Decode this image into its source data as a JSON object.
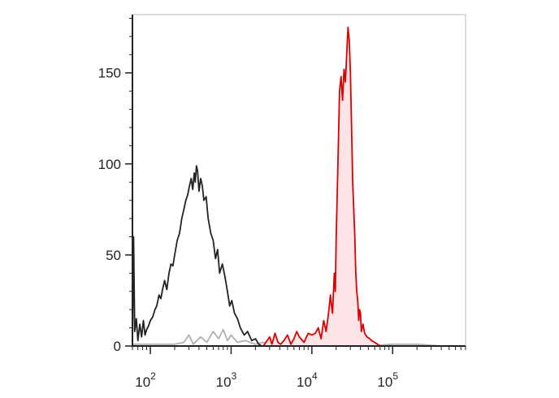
{
  "chart_data": {
    "type": "area",
    "title": "",
    "xlabel": "",
    "ylabel": "",
    "x_scale": "log",
    "xlim": [
      60,
      800000
    ],
    "ylim": [
      0,
      182
    ],
    "grid": false,
    "legend": "none",
    "x_ticks": [
      {
        "value": 100,
        "base": "10",
        "exp": "2"
      },
      {
        "value": 1000,
        "base": "10",
        "exp": "3"
      },
      {
        "value": 10000,
        "base": "10",
        "exp": "4"
      },
      {
        "value": 100000,
        "base": "10",
        "exp": "5"
      }
    ],
    "y_ticks": [
      {
        "value": 0,
        "label": "0"
      },
      {
        "value": 50,
        "label": "50"
      },
      {
        "value": 100,
        "label": "100"
      },
      {
        "value": 150,
        "label": "150"
      }
    ],
    "series": [
      {
        "color": "#b0b0b0",
        "fill": false,
        "points": [
          [
            60,
            1
          ],
          [
            80,
            1
          ],
          [
            120,
            1
          ],
          [
            200,
            1
          ],
          [
            260,
            2
          ],
          [
            300,
            6
          ],
          [
            340,
            1
          ],
          [
            420,
            5
          ],
          [
            500,
            2
          ],
          [
            600,
            8
          ],
          [
            700,
            4
          ],
          [
            800,
            9
          ],
          [
            900,
            3
          ],
          [
            1000,
            6
          ],
          [
            1200,
            2
          ],
          [
            1500,
            3
          ],
          [
            2000,
            1
          ],
          [
            2500,
            2
          ],
          [
            3000,
            1
          ],
          [
            5000,
            0
          ],
          [
            8000,
            0
          ],
          [
            20000,
            0
          ],
          [
            50000,
            0
          ],
          [
            100000,
            1
          ],
          [
            200000,
            1
          ],
          [
            400000,
            0
          ],
          [
            800000,
            0
          ]
        ]
      },
      {
        "color": "#222222",
        "fill": false,
        "points": [
          [
            60,
            0
          ],
          [
            62,
            60
          ],
          [
            64,
            8
          ],
          [
            67,
            15
          ],
          [
            70,
            3
          ],
          [
            74,
            12
          ],
          [
            78,
            5
          ],
          [
            82,
            14
          ],
          [
            86,
            6
          ],
          [
            90,
            9
          ],
          [
            95,
            11
          ],
          [
            100,
            14
          ],
          [
            107,
            16
          ],
          [
            114,
            20
          ],
          [
            120,
            22
          ],
          [
            128,
            28
          ],
          [
            135,
            26
          ],
          [
            143,
            32
          ],
          [
            150,
            36
          ],
          [
            160,
            31
          ],
          [
            170,
            40
          ],
          [
            180,
            45
          ],
          [
            190,
            44
          ],
          [
            200,
            50
          ],
          [
            215,
            58
          ],
          [
            230,
            62
          ],
          [
            245,
            70
          ],
          [
            260,
            75
          ],
          [
            275,
            80
          ],
          [
            290,
            83
          ],
          [
            305,
            88
          ],
          [
            320,
            92
          ],
          [
            335,
            86
          ],
          [
            350,
            95
          ],
          [
            360,
            90
          ],
          [
            372,
            99
          ],
          [
            385,
            96
          ],
          [
            400,
            85
          ],
          [
            420,
            92
          ],
          [
            440,
            88
          ],
          [
            460,
            80
          ],
          [
            490,
            82
          ],
          [
            520,
            70
          ],
          [
            560,
            62
          ],
          [
            600,
            58
          ],
          [
            640,
            48
          ],
          [
            680,
            53
          ],
          [
            720,
            40
          ],
          [
            780,
            45
          ],
          [
            840,
            38
          ],
          [
            900,
            30
          ],
          [
            960,
            22
          ],
          [
            1020,
            25
          ],
          [
            1100,
            18
          ],
          [
            1200,
            15
          ],
          [
            1300,
            10
          ],
          [
            1450,
            6
          ],
          [
            1600,
            8
          ],
          [
            1800,
            3
          ],
          [
            2000,
            4
          ],
          [
            2200,
            1
          ],
          [
            2400,
            0
          ]
        ]
      },
      {
        "color": "#dd0000",
        "fill": true,
        "fill_color": "#fde4e6",
        "points": [
          [
            2500,
            0
          ],
          [
            2700,
            2
          ],
          [
            3000,
            5
          ],
          [
            3200,
            1
          ],
          [
            3500,
            7
          ],
          [
            3800,
            2
          ],
          [
            4100,
            1
          ],
          [
            4500,
            3
          ],
          [
            5000,
            6
          ],
          [
            5500,
            1
          ],
          [
            6000,
            4
          ],
          [
            6500,
            8
          ],
          [
            7000,
            5
          ],
          [
            8000,
            2
          ],
          [
            9000,
            7
          ],
          [
            10000,
            6
          ],
          [
            11000,
            7
          ],
          [
            12000,
            10
          ],
          [
            13000,
            4
          ],
          [
            14000,
            14
          ],
          [
            15000,
            8
          ],
          [
            16000,
            17
          ],
          [
            17000,
            28
          ],
          [
            17500,
            22
          ],
          [
            18000,
            18
          ],
          [
            19000,
            40
          ],
          [
            19500,
            30
          ],
          [
            20000,
            60
          ],
          [
            21000,
            100
          ],
          [
            22000,
            140
          ],
          [
            23000,
            148
          ],
          [
            24000,
            135
          ],
          [
            25000,
            152
          ],
          [
            26000,
            145
          ],
          [
            27000,
            160
          ],
          [
            28000,
            175
          ],
          [
            29000,
            168
          ],
          [
            30000,
            150
          ],
          [
            31000,
            120
          ],
          [
            32000,
            90
          ],
          [
            33000,
            75
          ],
          [
            34000,
            60
          ],
          [
            35000,
            40
          ],
          [
            36000,
            30
          ],
          [
            37000,
            25
          ],
          [
            38000,
            14
          ],
          [
            39000,
            20
          ],
          [
            40000,
            18
          ],
          [
            41000,
            8
          ],
          [
            43000,
            12
          ],
          [
            45000,
            7
          ],
          [
            48000,
            5
          ],
          [
            52000,
            4
          ],
          [
            55000,
            3
          ],
          [
            60000,
            2
          ],
          [
            65000,
            1
          ],
          [
            70000,
            0
          ]
        ]
      }
    ]
  }
}
